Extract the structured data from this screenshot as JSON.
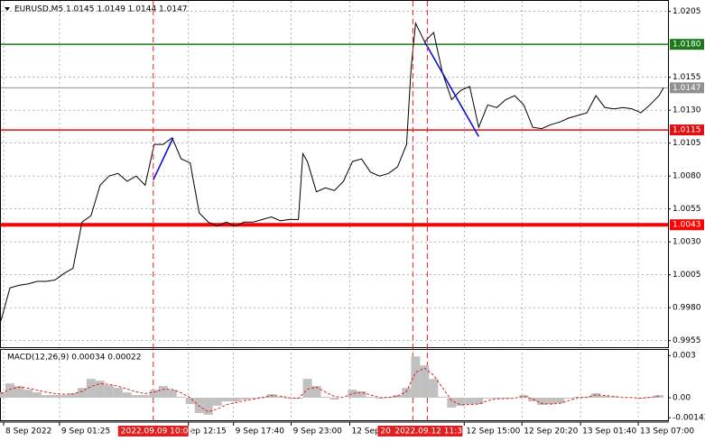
{
  "chart_data": [
    {
      "type": "line",
      "title": "EURUSD,M5  1.0145 1.0149 1.0144 1.0147",
      "color": "#000000",
      "x": [
        0,
        2,
        4,
        6,
        8,
        10,
        12,
        14,
        16,
        18,
        20,
        22,
        24,
        26,
        28,
        30,
        32,
        34,
        36,
        38,
        40,
        42,
        44,
        46,
        48,
        50,
        52,
        54,
        56,
        58,
        60,
        62,
        64,
        66,
        67,
        68,
        70,
        72,
        74,
        76,
        78,
        80,
        82,
        84,
        86,
        88,
        90,
        91,
        92,
        94,
        96,
        98,
        100,
        102,
        104,
        106,
        108,
        110,
        112,
        114,
        116,
        118,
        120,
        122,
        124,
        126,
        128,
        130,
        132,
        134,
        136,
        138,
        140,
        142,
        144,
        146,
        147
      ],
      "values": [
        0.997,
        0.9995,
        0.9997,
        0.9998,
        1.0,
        1.0,
        1.0001,
        1.0006,
        1.001,
        1.0045,
        1.005,
        1.0073,
        1.008,
        1.0082,
        1.0076,
        1.008,
        1.0073,
        1.0104,
        1.0104,
        1.0109,
        1.0093,
        1.009,
        1.0052,
        1.0045,
        1.0042,
        1.0045,
        1.0042,
        1.0045,
        1.0045,
        1.0047,
        1.0049,
        1.0046,
        1.0047,
        1.0047,
        1.0097,
        1.0091,
        1.0068,
        1.0071,
        1.0069,
        1.0076,
        1.0091,
        1.0093,
        1.0083,
        1.008,
        1.0082,
        1.0087,
        1.0104,
        1.0162,
        1.0196,
        1.0182,
        1.0189,
        1.0158,
        1.0138,
        1.0145,
        1.0148,
        1.0117,
        1.0134,
        1.0132,
        1.0138,
        1.0141,
        1.0134,
        1.0117,
        1.0116,
        1.0119,
        1.0121,
        1.0124,
        1.0126,
        1.0128,
        1.0141,
        1.0132,
        1.0131,
        1.0132,
        1.0131,
        1.0128,
        1.0134,
        1.0141,
        1.0147
      ],
      "xlim": [
        0,
        148
      ],
      "xticks": [
        {
          "value": 0.6,
          "label": "8 Sep 2022"
        },
        {
          "value": 13,
          "label": "9 Sep 01:25"
        },
        {
          "value": 41.6,
          "label": "ep 12:15"
        },
        {
          "value": 51.6,
          "label": "9 Sep 17:40"
        },
        {
          "value": 64.4,
          "label": "9 Sep 23:00"
        },
        {
          "value": 77.4,
          "label": "12 Sep"
        },
        {
          "value": 102.8,
          "label": "12 Sep 15:00"
        },
        {
          "value": 115.6,
          "label": "12 Sep 20:20"
        },
        {
          "value": 128.6,
          "label": "13 Sep 01:40"
        },
        {
          "value": 141.4,
          "label": "13 Sep 07:00"
        }
      ],
      "ylim": [
        0.995,
        1.0213
      ],
      "yticks": [
        1.0205,
        1.0155,
        {
          "value": 1.013,
          "label": "1.0130"
        },
        1.0105,
        {
          "value": 1.008,
          "label": "1.0080"
        },
        1.0055,
        {
          "value": 1.003,
          "label": "1.0030"
        },
        1.0005,
        {
          "value": 0.998,
          "label": "0.9980"
        },
        0.9955
      ],
      "grid": true,
      "levels": [
        {
          "value": 1.018,
          "label": "1.0180",
          "color": "#1a7a1a",
          "line_width": 1.5
        },
        {
          "value": 1.0147,
          "label": "1.0147",
          "color": "#909090",
          "line_width": 1
        },
        {
          "value": 1.0115,
          "label": "1.0115",
          "color": "#e01010",
          "line_width": 1.5
        },
        {
          "value": 1.0043,
          "label": "1.0043",
          "color": "#ff0000",
          "line_width": 4
        }
      ],
      "vlines": [
        {
          "value": 33.8,
          "label": "2022.09.09 10:05"
        },
        {
          "value": 91.4,
          "label": "20"
        },
        {
          "value": 94.6,
          "label": "2022.09.12 11:30"
        }
      ],
      "vline_color": "#e02020",
      "trendlines": [
        {
          "x": [
            33.8,
            38.2
          ],
          "y": [
            1.0077,
            1.0109
          ]
        },
        {
          "x": [
            94,
            106
          ],
          "y": [
            1.0182,
            1.011
          ]
        }
      ],
      "trend_color": "#1010d0"
    },
    {
      "type": "macd",
      "title": "MACD(12,26,9) 0.00034 0.00022",
      "x": [
        0,
        2,
        4,
        6,
        8,
        10,
        12,
        14,
        16,
        18,
        20,
        22,
        24,
        26,
        28,
        30,
        32,
        34,
        36,
        38,
        40,
        42,
        44,
        46,
        48,
        50,
        52,
        54,
        56,
        58,
        60,
        62,
        64,
        66,
        68,
        70,
        72,
        74,
        76,
        78,
        80,
        82,
        84,
        86,
        88,
        90,
        92,
        94,
        96,
        98,
        100,
        102,
        104,
        106,
        108,
        110,
        112,
        114,
        116,
        118,
        120,
        122,
        124,
        126,
        128,
        130,
        132,
        134,
        136,
        138,
        140,
        142,
        144,
        146
      ],
      "series": [
        {
          "color": "#c0c0c0",
          "values": [
            0.00038,
            0.00102,
            0.00083,
            0.00057,
            0.00038,
            0.00019,
            0.00019,
            0.00019,
            0.00032,
            0.0007,
            0.00134,
            0.00121,
            0.00089,
            0.0007,
            0.00038,
            0.00019,
            0.00019,
            0.00057,
            0.00083,
            0.00057,
            6e-05,
            -0.00045,
            -0.00109,
            -0.00121,
            -0.00057,
            -0.00026,
            -0.00026,
            -0.00013,
            -6e-05,
            6e-05,
            0.00026,
            6e-05,
            -6e-05,
            -6e-05,
            0.00134,
            0.00083,
            6e-05,
            -0.00013,
            0,
            0.00057,
            0.00045,
            6e-05,
            -6e-05,
            6e-05,
            0.00019,
            0.0007,
            0.00294,
            0.0023,
            0.00134,
            6e-05,
            -0.0007,
            -0.00057,
            -0.00045,
            -0.00045,
            -6e-05,
            -6e-05,
            -6e-05,
            0,
            0.00019,
            -0.00026,
            -0.00051,
            -0.00045,
            -0.00038,
            -6e-05,
            6e-05,
            6e-05,
            0.00032,
            0.00013,
            6e-05,
            0,
            0,
            -6e-05,
            6e-05,
            0.00019
          ]
        },
        {
          "color": "#e02020",
          "values": [
            0.0003,
            0.0006,
            0.00075,
            0.00068,
            0.00055,
            0.0004,
            0.0003,
            0.00025,
            0.00027,
            0.00045,
            0.0008,
            0.001,
            0.00095,
            0.00082,
            0.00062,
            0.00042,
            0.0003,
            0.0004,
            0.0006,
            0.0006,
            0.00035,
            0,
            -0.0006,
            -0.001,
            -0.0008,
            -0.0005,
            -0.00035,
            -0.0002,
            -0.0001,
            0,
            0.00015,
            0.00012,
            0,
            -4e-05,
            0.0006,
            0.00075,
            0.0004,
            0.0001,
            2e-05,
            0.0003,
            0.0004,
            0.0002,
            2e-05,
            2e-05,
            0.00012,
            0.00045,
            0.0018,
            0.0021,
            0.0016,
            0.0007,
            -0.0002,
            -0.0005,
            -0.00048,
            -0.00045,
            -0.0002,
            -8e-05,
            -6e-05,
            -3e-05,
            0.0001,
            -0.0001,
            -0.0004,
            -0.00045,
            -0.0004,
            -0.0002,
            0,
            4e-05,
            0.0002,
            0.00016,
            0.0001,
            3e-05,
            1e-05,
            -3e-05,
            2e-05,
            0.00012
          ]
        }
      ],
      "xlim": [
        0,
        148
      ],
      "ylim": [
        -0.0016,
        0.0034
      ],
      "yticks": [
        0.003,
        {
          "value": 0,
          "label": "0.00"
        },
        -0.00142
      ]
    }
  ]
}
